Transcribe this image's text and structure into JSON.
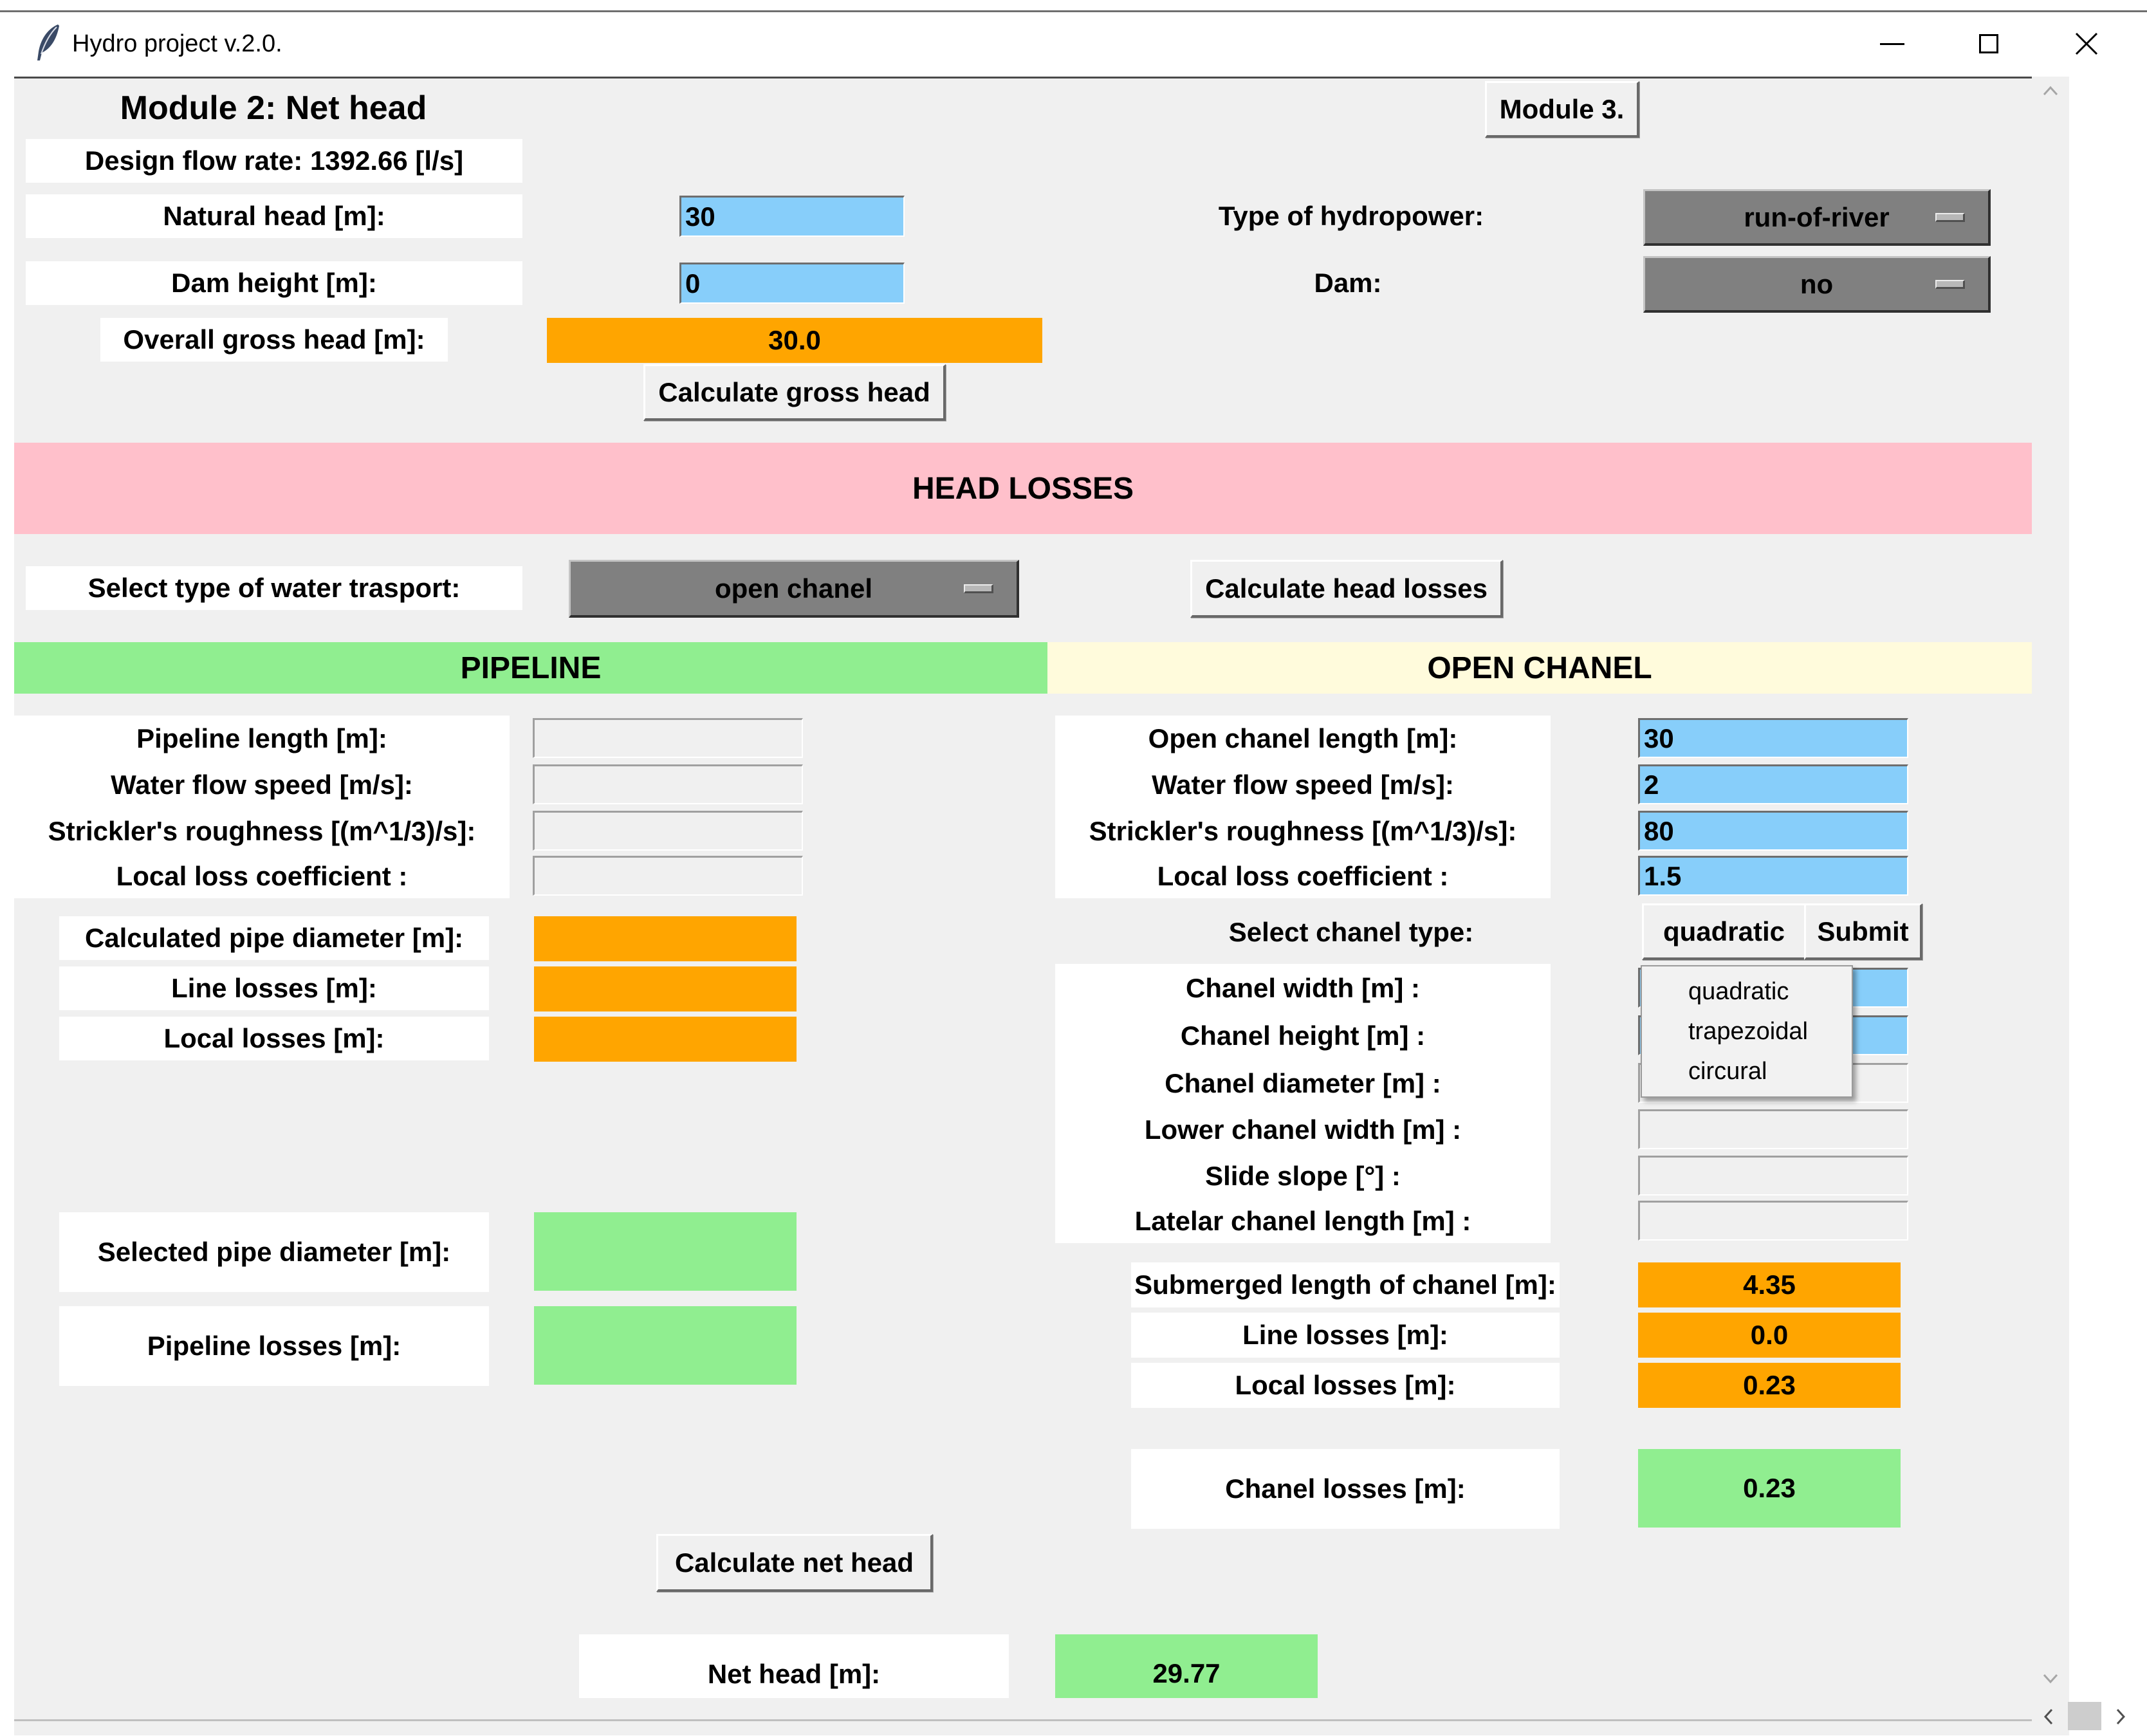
{
  "window": {
    "title": "Hydro project v.2.0."
  },
  "gross": {
    "module_title": "Module 2: Net head",
    "module3_button": "Module 3.",
    "design_flow": "Design flow rate: 1392.66 [l/s]",
    "natural_head_label": "Natural head [m]:",
    "natural_head_value": "30",
    "dam_height_label": "Dam height [m]:",
    "dam_height_value": "0",
    "overall_gross_label": "Overall gross head [m]:",
    "overall_gross_value": "30.0",
    "calc_gross_button": "Calculate gross head",
    "type_label": "Type of hydropower:",
    "type_value": "run-of-river",
    "dam_label": "Dam:",
    "dam_value": "no"
  },
  "head_losses": {
    "banner": "HEAD LOSSES",
    "transport_label": "Select type of water trasport:",
    "transport_value": "open chanel",
    "calc_losses_button": "Calculate head losses"
  },
  "pipeline": {
    "banner": "PIPELINE",
    "length_label": "Pipeline length [m]:",
    "speed_label": "Water flow speed  [m/s]:",
    "strickler_label": "Strickler's roughness [(m^1/3)/s]:",
    "local_coef_label": "Local loss coefficient :",
    "calc_diameter_label": "Calculated pipe diameter [m]:",
    "line_losses_label": "Line losses [m]:",
    "local_losses_label": "Local losses [m]:",
    "selected_diameter_label": "Selected pipe diameter [m]:",
    "pipeline_losses_label": "Pipeline losses [m]:"
  },
  "open_chanel": {
    "banner": "OPEN CHANEL",
    "length_label": "Open chanel length [m]:",
    "length_value": "30",
    "speed_label": "Water flow speed  [m/s]:",
    "speed_value": "2",
    "strickler_label": "Strickler's roughness [(m^1/3)/s]:",
    "strickler_value": "80",
    "local_coef_label": "Local loss coefficient :",
    "local_coef_value": "1.5",
    "chanel_type_label": "Select chanel type:",
    "chanel_type_value": "quadratic",
    "submit_button": "Submit",
    "width_label": "Chanel width [m] :",
    "height_label": "Chanel height [m] :",
    "diameter_label": "Chanel diameter [m] :",
    "lower_width_label": "Lower chanel width [m] :",
    "slide_slope_label": "Slide slope [°] :",
    "lateral_length_label": "Latelar chanel length [m] :",
    "submerged_label": "Submerged length of chanel [m]:",
    "submerged_value": "4.35",
    "line_losses_label": "Line losses [m]:",
    "line_losses_value": "0.0",
    "local_losses_label": "Local losses [m]:",
    "local_losses_value": "0.23",
    "chanel_losses_label": "Chanel losses [m]:",
    "chanel_losses_value": "0.23"
  },
  "chanel_type_menu": {
    "options": [
      "quadratic",
      "trapezoidal",
      "circural"
    ]
  },
  "net": {
    "calc_net_button": "Calculate net head",
    "net_head_label": "Net head [m]:",
    "net_head_value": "29.77"
  },
  "colors": {
    "entry_blue": "#87cefa",
    "result_orange": "#ffa500",
    "result_green": "#90ee90",
    "head_losses_pink": "#ffc0cb",
    "pipeline_green": "#90ee90",
    "open_chanel_yellow": "#fffbdc",
    "menu_gray": "#808080"
  },
  "icons": {
    "app": "feather-icon",
    "minimize": "minimize-icon",
    "maximize": "maximize-icon",
    "close": "close-icon"
  }
}
